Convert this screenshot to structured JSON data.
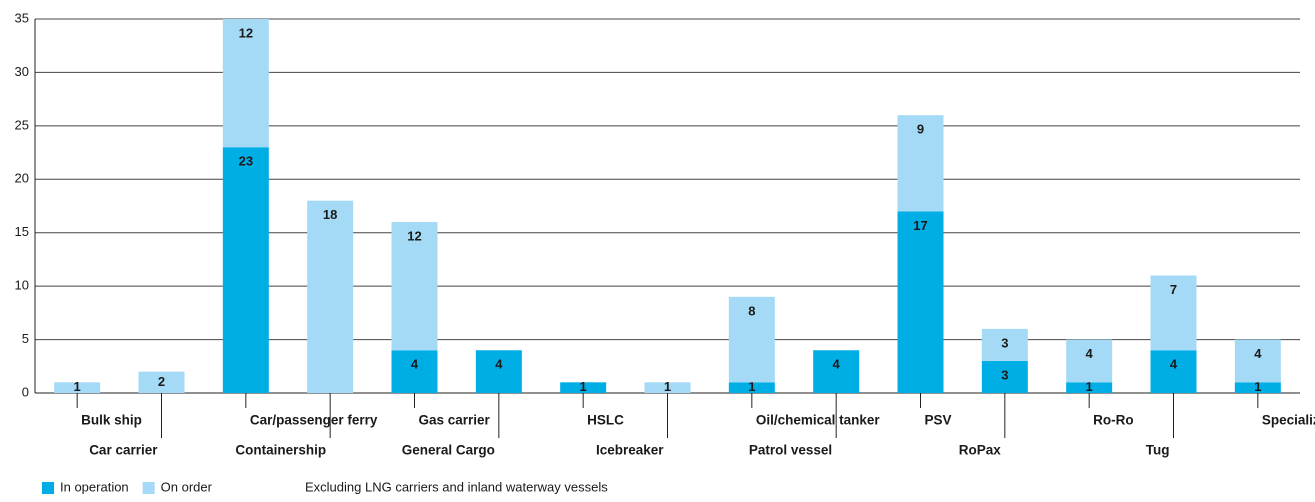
{
  "chart_data": {
    "type": "stacked-bar",
    "categories": [
      "Bulk ship",
      "Car carrier",
      "Car/passenger ferry",
      "Containership",
      "Gas carrier",
      "General Cargo",
      "HSLC",
      "Icebreaker",
      "Oil/chemical tanker",
      "Patrol vessel",
      "PSV",
      "RoPax",
      "Ro-Ro",
      "Tug",
      "Specialized vessel"
    ],
    "series": [
      {
        "name": "In operation",
        "color": "#00aee6",
        "values": [
          null,
          null,
          23,
          null,
          4,
          4,
          1,
          null,
          1,
          4,
          17,
          3,
          1,
          4,
          1
        ]
      },
      {
        "name": "On order",
        "color": "#a5daf7",
        "values": [
          1,
          2,
          12,
          18,
          12,
          null,
          null,
          1,
          8,
          null,
          9,
          3,
          4,
          7,
          4
        ]
      }
    ],
    "ylim": [
      0,
      35
    ],
    "yticks": [
      0,
      5,
      10,
      15,
      20,
      25,
      30,
      35
    ],
    "grid": true,
    "note": "Excluding LNG carriers and inland waterway vessels"
  }
}
